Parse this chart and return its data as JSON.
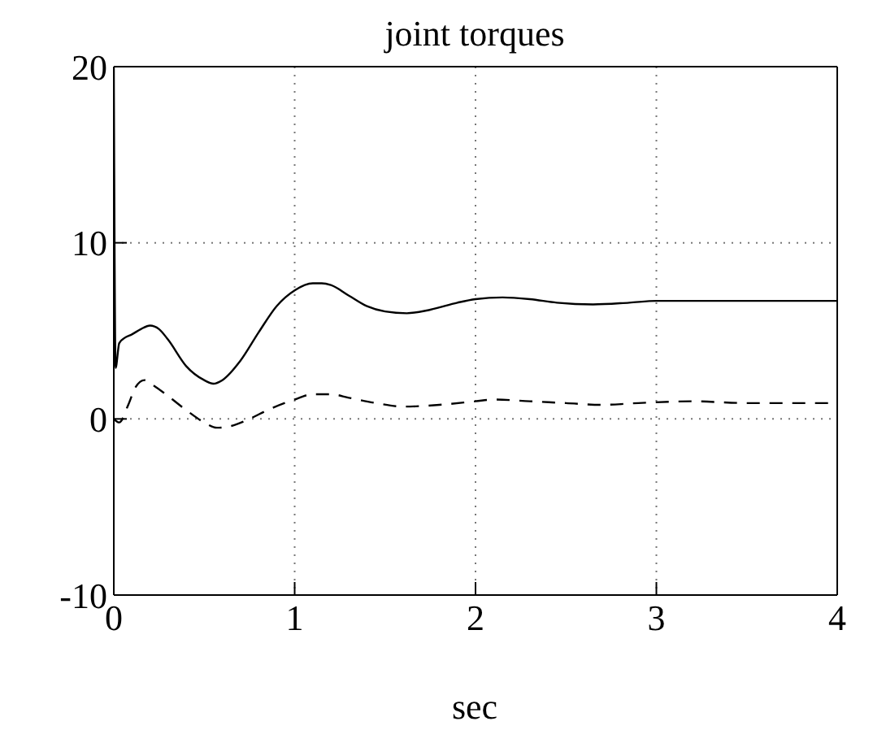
{
  "chart_data": {
    "type": "line",
    "title": "joint torques",
    "xlabel": "sec",
    "xlim": [
      0,
      4
    ],
    "xticks": [
      0,
      1,
      2,
      3,
      4
    ],
    "ylim": [
      -10,
      20
    ],
    "yticks": [
      -10,
      0,
      10,
      20
    ],
    "grid": true,
    "marker": "none",
    "series": [
      {
        "color": "#000000",
        "line_style": "solid",
        "x": [
          0,
          0.01,
          0.03,
          0.06,
          0.1,
          0.15,
          0.2,
          0.25,
          0.3,
          0.4,
          0.5,
          0.55,
          0.6,
          0.7,
          0.8,
          0.9,
          1.0,
          1.1,
          1.15,
          1.2,
          1.3,
          1.4,
          1.5,
          1.62,
          1.75,
          1.9,
          2.0,
          2.15,
          2.3,
          2.45,
          2.65,
          2.85,
          3.0,
          3.2,
          3.5,
          3.8,
          4.0
        ],
        "values": [
          20,
          2.9,
          4.3,
          4.6,
          4.8,
          5.1,
          5.3,
          5.1,
          4.5,
          3.0,
          2.2,
          2.0,
          2.2,
          3.3,
          4.9,
          6.4,
          7.3,
          7.7,
          7.7,
          7.6,
          7.0,
          6.4,
          6.1,
          6.0,
          6.2,
          6.6,
          6.8,
          6.9,
          6.8,
          6.6,
          6.5,
          6.6,
          6.7,
          6.7,
          6.7,
          6.7,
          6.7
        ]
      },
      {
        "color": "#000000",
        "line_style": "dashed",
        "x": [
          0,
          0.03,
          0.08,
          0.12,
          0.17,
          0.22,
          0.3,
          0.4,
          0.5,
          0.57,
          0.65,
          0.75,
          0.85,
          1.0,
          1.1,
          1.2,
          1.3,
          1.45,
          1.6,
          1.8,
          2.0,
          2.1,
          2.3,
          2.5,
          2.7,
          2.9,
          3.2,
          3.5,
          4.0
        ],
        "values": [
          0,
          -0.2,
          0.8,
          1.8,
          2.2,
          1.9,
          1.3,
          0.5,
          -0.2,
          -0.5,
          -0.4,
          0.0,
          0.5,
          1.1,
          1.4,
          1.4,
          1.2,
          0.9,
          0.7,
          0.8,
          1.0,
          1.1,
          1.0,
          0.9,
          0.8,
          0.9,
          1.0,
          0.9,
          0.9
        ]
      }
    ]
  }
}
